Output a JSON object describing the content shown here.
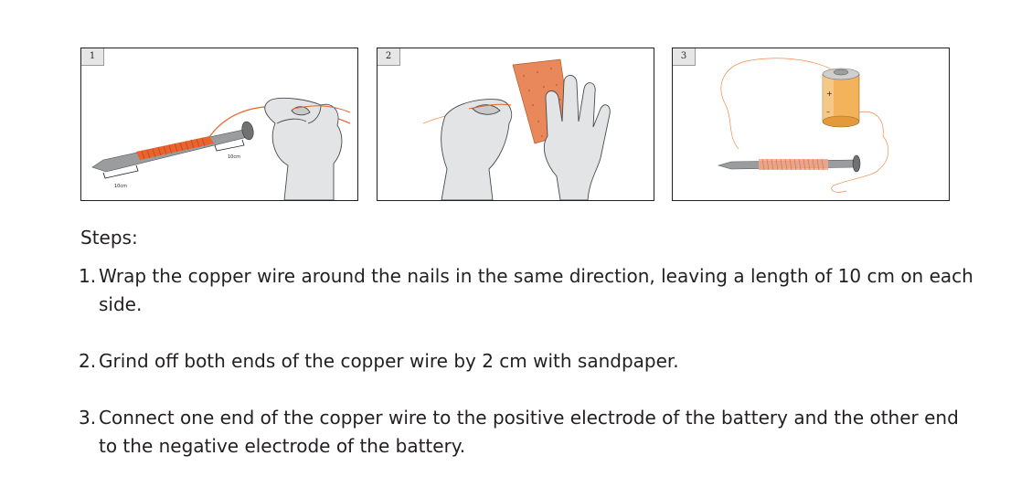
{
  "panels": [
    {
      "number": "1",
      "wire_labels": [
        "10cm",
        "10cm"
      ]
    },
    {
      "number": "2"
    },
    {
      "number": "3",
      "battery_labels": {
        "positive": "+",
        "negative": "–"
      }
    }
  ],
  "steps_heading": "Steps:",
  "steps": [
    {
      "number": "1.",
      "text": "Wrap the copper wire around the nails in the same direction, leaving a length of 10 cm on each side."
    },
    {
      "number": "2.",
      "text": "Grind off both ends of the copper wire by 2 cm with sandpaper."
    },
    {
      "number": "3.",
      "text": "Connect one end of the copper wire to the positive electrode of the battery and the other end to the negative electrode of the battery."
    }
  ],
  "colors": {
    "copper": "#e8632d",
    "wire": "#f08a4b",
    "sandpaper": "#e9885a",
    "glove": "#e3e4e5",
    "nail": "#9a9c9e",
    "battery_body": "#f2b35b"
  }
}
